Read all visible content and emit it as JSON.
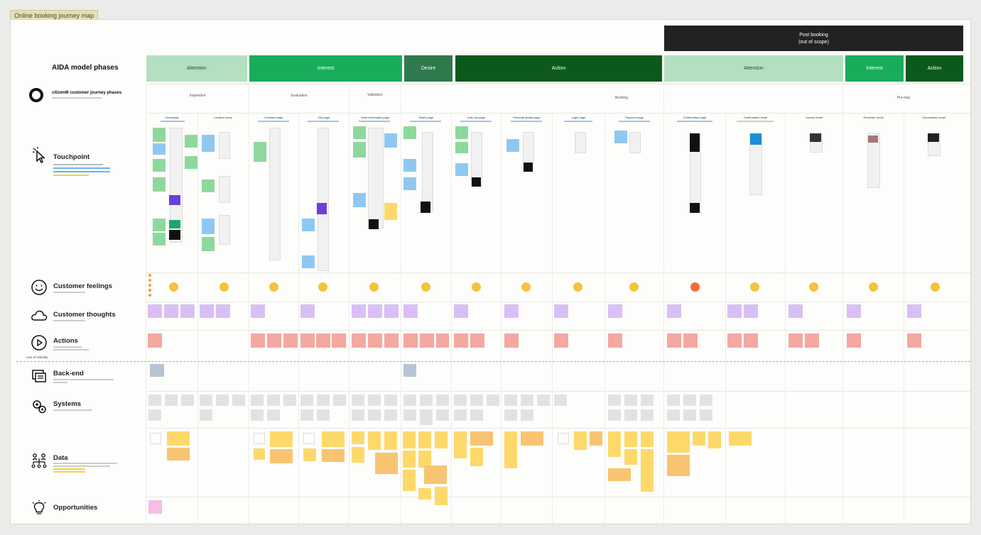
{
  "frame_title": "Online booking journey map",
  "post_booking": {
    "line1": "Post booking",
    "line2": "(out of scope)"
  },
  "aida": {
    "title": "AIDA model phases",
    "phases": [
      {
        "label": "Attention",
        "color": "#b4dfc1",
        "text_color": "#2d4a35"
      },
      {
        "label": "Interest",
        "color": "#19ad5b",
        "text_color": "#ffffff"
      },
      {
        "label": "Desire",
        "color": "#2e7a4d",
        "text_color": "#ffffff"
      },
      {
        "label": "Action",
        "color": "#0b5a1c",
        "text_color": "#ffffff"
      },
      {
        "label": "Attention",
        "color": "#b4dfc1",
        "text_color": "#2d4a35"
      },
      {
        "label": "Interest",
        "color": "#19ad5b",
        "text_color": "#ffffff"
      },
      {
        "label": "Action",
        "color": "#0b5a1c",
        "text_color": "#ffffff"
      }
    ]
  },
  "journey": {
    "title": "citizenM customer journey phases",
    "phases": [
      "Inspiration",
      "Evaluation",
      "Validation",
      "Booking",
      "Pre-stay"
    ]
  },
  "lanes": {
    "touchpoint": "Touchpoint",
    "feelings": "Customer feelings",
    "thoughts": "Customer thoughts",
    "actions": "Actions",
    "backend": "Back-end",
    "systems": "Systems",
    "data": "Data",
    "opportunities": "Opportunities"
  },
  "line_of_visibility": "Line of visibility",
  "touchpoints": [
    "Homepage",
    "Location menu",
    "Continent page",
    "City page",
    "Hotel information page",
    "Rates page",
    "Add-ons page",
    "Personal details page",
    "Login page",
    "Payment page",
    "Confirmation page",
    "Confirmation email",
    "Invoice email",
    "Reminder email",
    "Cancellation email"
  ],
  "colors": {
    "sticky_green": "#8ed89d",
    "sticky_blue": "#8ec8f2",
    "sticky_purple": "#d9bff5",
    "sticky_red": "#f4a8a0",
    "sticky_grey": "#e2e2e2",
    "sticky_yellow": "#fdd96b",
    "sticky_orange": "#f8c471",
    "sticky_slate": "#b7c4d4",
    "sticky_pink": "#f6bde6"
  }
}
